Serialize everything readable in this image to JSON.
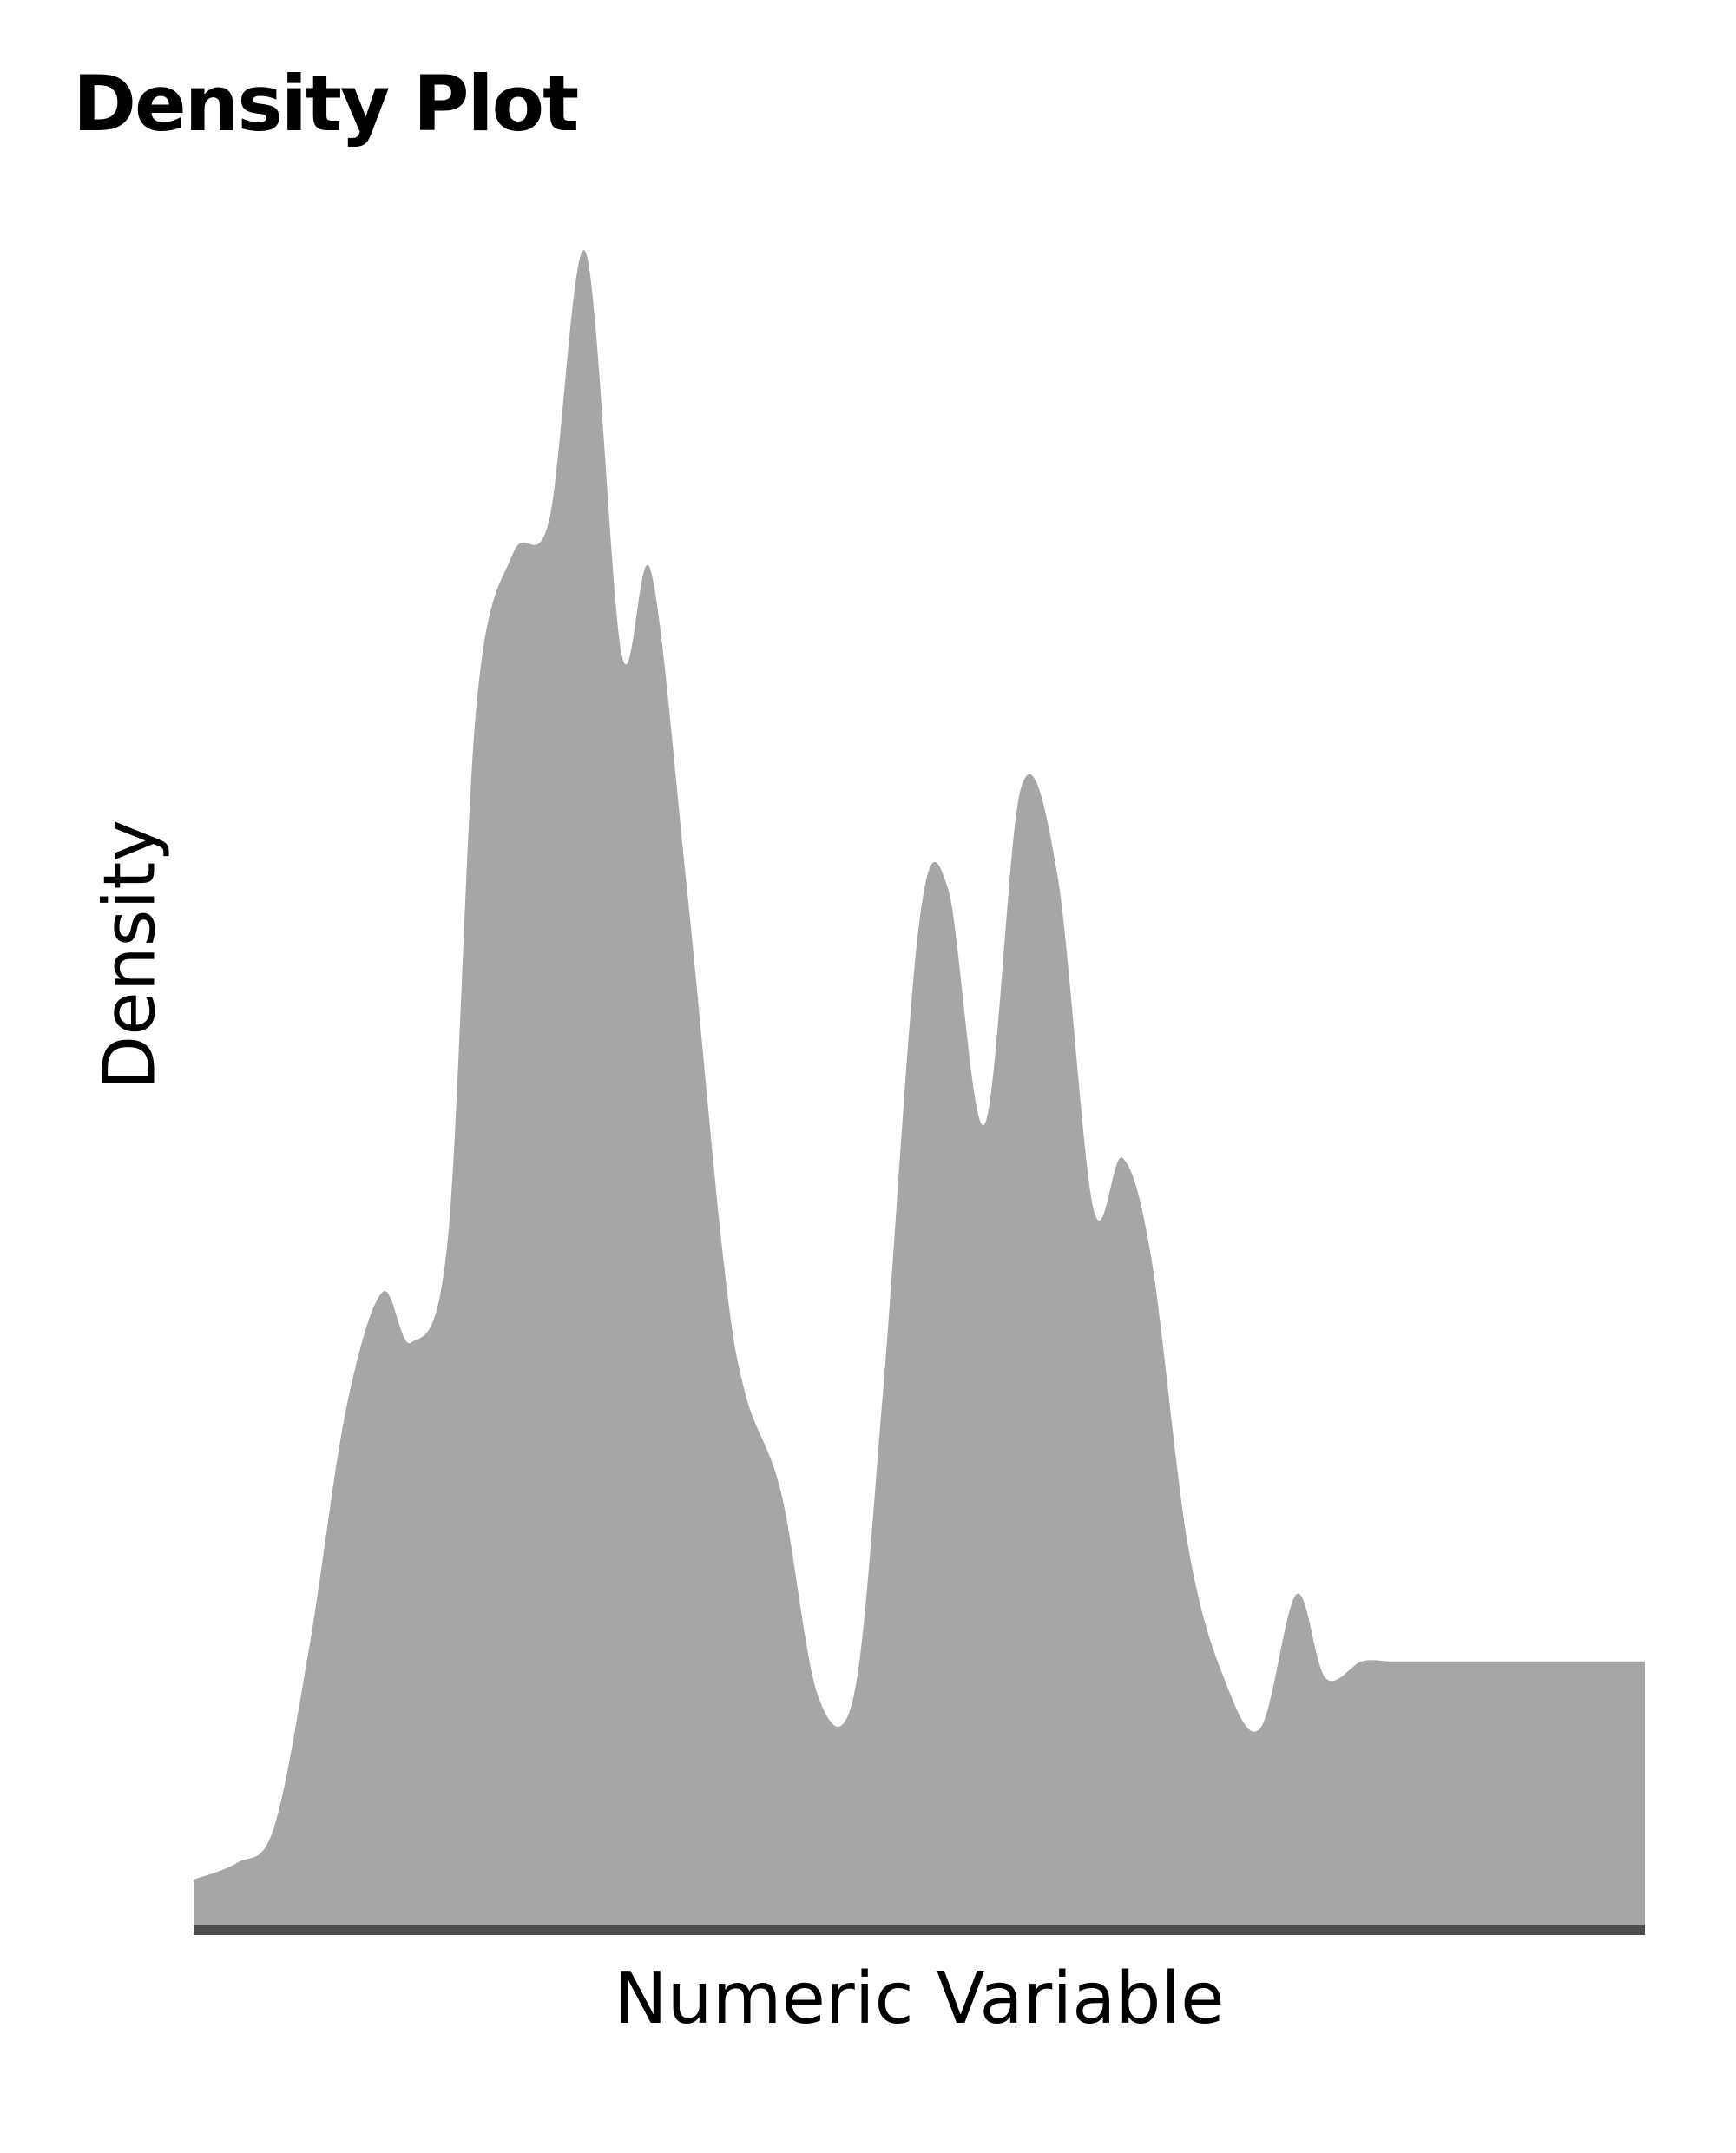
{
  "chart_data": {
    "type": "area",
    "title": "Density Plot",
    "xlabel": "Numeric Variable",
    "ylabel": "Density",
    "xlim": [
      0,
      100
    ],
    "ylim": [
      0,
      1
    ],
    "grid": false,
    "axis_ticks": false,
    "legend": "none",
    "colors": {
      "fill": "#a6a6a6",
      "baseline": "#4d4d4d",
      "text": "#000000",
      "background": "#ffffff"
    },
    "x": [
      0,
      3,
      5.5,
      8,
      10.5,
      13,
      15,
      17.5,
      19.5,
      22,
      24.5,
      27,
      29.5,
      31.5,
      34,
      36.5,
      38,
      40.5,
      43,
      45.5,
      47.5,
      50,
      52,
      54.5,
      57,
      59.5,
      62,
      64,
      66,
      68.5,
      71,
      73.5,
      76,
      78,
      80.5,
      82.5,
      84.5,
      87,
      89,
      91.5,
      93.5,
      95.5,
      98,
      100
    ],
    "y": [
      0.03,
      0.04,
      0.06,
      0.17,
      0.31,
      0.38,
      0.35,
      0.41,
      0.73,
      0.82,
      0.84,
      1.0,
      0.76,
      0.81,
      0.62,
      0.4,
      0.32,
      0.26,
      0.14,
      0.14,
      0.32,
      0.6,
      0.62,
      0.48,
      0.68,
      0.63,
      0.43,
      0.46,
      0.4,
      0.23,
      0.15,
      0.12,
      0.2,
      0.15,
      0.16,
      0.16,
      0.16,
      0.16,
      0.16,
      0.16,
      0.16,
      0.16,
      0.16,
      0.16
    ]
  }
}
